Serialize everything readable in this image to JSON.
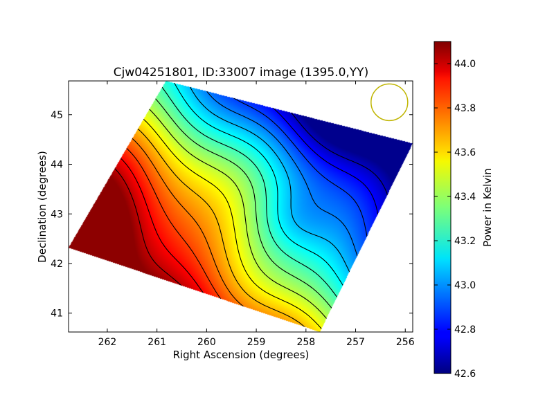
{
  "chart_data": {
    "type": "heatmap",
    "title": "Cjw04251801, ID:33007 image (1395.0,YY)",
    "xlabel": "Right Ascension (degrees)",
    "ylabel": "Declination (degrees)",
    "x_reversed": true,
    "xlim": [
      262.78,
      255.85
    ],
    "ylim": [
      40.62,
      45.68
    ],
    "xticks": [
      262,
      261,
      260,
      259,
      258,
      257,
      256
    ],
    "yticks": [
      41,
      42,
      43,
      44,
      45
    ],
    "colorbar": {
      "label": "Power in Kelvin",
      "min": 42.6,
      "max": 44.1,
      "colormap": "jet",
      "ticks": [
        "42.6",
        "42.8",
        "43.0",
        "43.2",
        "43.4",
        "43.6",
        "43.8",
        "44.0"
      ]
    },
    "field_polygon": [
      [
        260.82,
        45.68
      ],
      [
        255.85,
        44.42
      ],
      [
        257.72,
        40.62
      ],
      [
        262.78,
        42.32
      ]
    ],
    "beam_circle": {
      "ra": 256.32,
      "dec": 45.25,
      "radius_deg": 0.37,
      "color": "#bfb500"
    },
    "grid": false,
    "contour_levels": 15
  }
}
